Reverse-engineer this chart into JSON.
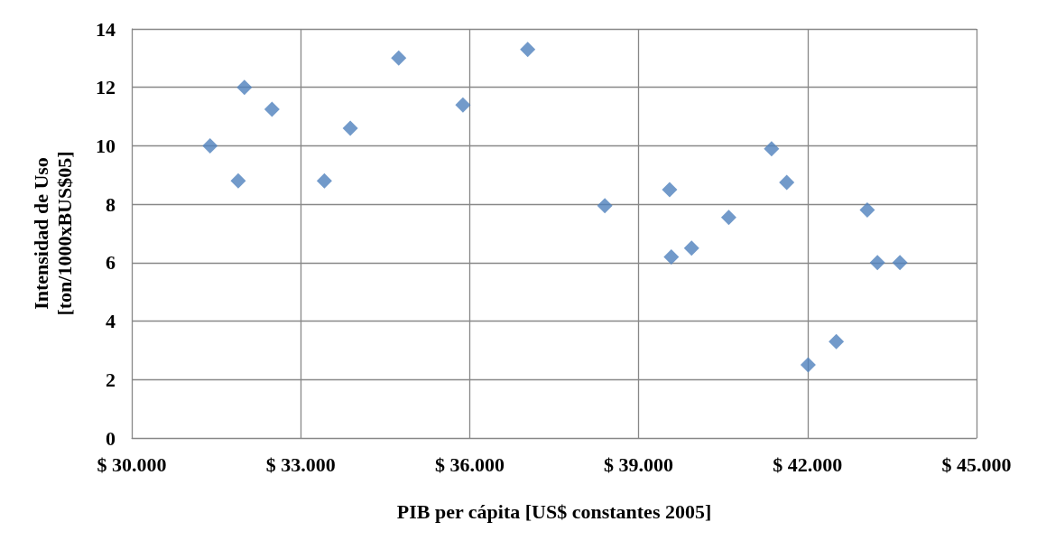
{
  "chart_data": {
    "type": "scatter",
    "xlabel": "PIB per cápita [US$ constantes 2005]",
    "ylabel": "Intensidad de Uso\n[ton/1000xBUS$05]",
    "x": [
      31390,
      31890,
      32000,
      32490,
      33420,
      33880,
      34740,
      35880,
      37030,
      38400,
      39550,
      39580,
      39940,
      40600,
      41360,
      41630,
      42010,
      42510,
      43060,
      43240,
      43640
    ],
    "series": [
      {
        "color": "#4f81bd",
        "values": [
          10.0,
          8.8,
          12.0,
          11.25,
          8.8,
          10.6,
          13.0,
          11.4,
          13.3,
          7.95,
          8.5,
          6.2,
          6.5,
          7.55,
          9.9,
          8.75,
          2.5,
          3.3,
          7.8,
          6.0,
          6.0
        ]
      }
    ],
    "xlim": [
      30000,
      45000
    ],
    "xticks": [
      {
        "value": 30000,
        "label": "$ 30.000"
      },
      {
        "value": 33000,
        "label": "$ 33.000"
      },
      {
        "value": 36000,
        "label": "$ 36.000"
      },
      {
        "value": 39000,
        "label": "$ 39.000"
      },
      {
        "value": 42000,
        "label": "$ 42.000"
      },
      {
        "value": 45000,
        "label": "$ 45.000"
      }
    ],
    "ylim": [
      0,
      14
    ],
    "yticks": [
      0,
      2,
      4,
      6,
      8,
      10,
      12,
      14
    ],
    "grid": true,
    "marker": "diamond"
  }
}
